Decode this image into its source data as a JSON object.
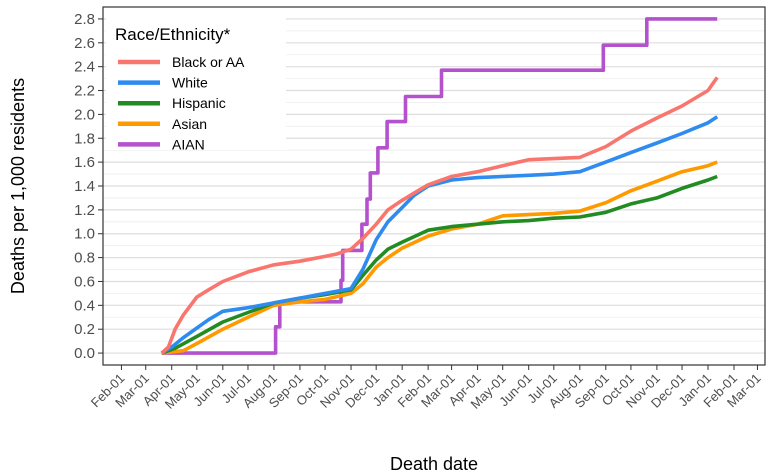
{
  "chart_data": {
    "type": "line",
    "xlabel": "Death date",
    "ylabel": "Deaths per 1,000 residents",
    "ylim": [
      -0.1,
      2.9
    ],
    "y_ticks": [
      0.0,
      0.2,
      0.4,
      0.6,
      0.8,
      1.0,
      1.2,
      1.4,
      1.6,
      1.8,
      2.0,
      2.2,
      2.4,
      2.6,
      2.8
    ],
    "y_tick_labels": [
      "0.0",
      "0.2",
      "0.4",
      "0.6",
      "0.8",
      "1.0",
      "1.2",
      "1.4",
      "1.6",
      "1.8",
      "2.0",
      "2.2",
      "2.4",
      "2.6",
      "2.8"
    ],
    "xlim": [
      "2020-01-10",
      "2022-03-10"
    ],
    "x_ticks": [
      "2020-02-01",
      "2020-03-01",
      "2020-04-01",
      "2020-05-01",
      "2020-06-01",
      "2020-07-01",
      "2020-08-01",
      "2020-09-01",
      "2020-10-01",
      "2020-11-01",
      "2020-12-01",
      "2021-01-01",
      "2021-02-01",
      "2021-03-01",
      "2021-04-01",
      "2021-05-01",
      "2021-06-01",
      "2021-07-01",
      "2021-08-01",
      "2021-09-01",
      "2021-10-01",
      "2021-11-01",
      "2021-12-01",
      "2022-01-01",
      "2022-02-01",
      "2022-03-01"
    ],
    "x_tick_labels": [
      "Feb-01",
      "Mar-01",
      "Apr-01",
      "May-01",
      "Jun-01",
      "Jul-01",
      "Aug-01",
      "Sep-01",
      "Oct-01",
      "Nov-01",
      "Dec-01",
      "Jan-01",
      "Feb-01",
      "Mar-01",
      "Apr-01",
      "May-01",
      "Jun-01",
      "Jul-01",
      "Aug-01",
      "Sep-01",
      "Oct-01",
      "Nov-01",
      "Dec-01",
      "Jan-01",
      "Feb-01",
      "Mar-01"
    ],
    "grid": true,
    "legend": {
      "title": "Race/Ethnicity*",
      "position": "top-left"
    },
    "series": [
      {
        "name": "Black or AA",
        "color": "#F8766D",
        "step": false,
        "points": [
          [
            "2020-03-20",
            0.0
          ],
          [
            "2020-03-28",
            0.05
          ],
          [
            "2020-04-05",
            0.2
          ],
          [
            "2020-04-15",
            0.32
          ],
          [
            "2020-05-01",
            0.47
          ],
          [
            "2020-05-15",
            0.53
          ],
          [
            "2020-06-01",
            0.6
          ],
          [
            "2020-07-01",
            0.68
          ],
          [
            "2020-08-01",
            0.74
          ],
          [
            "2020-09-01",
            0.77
          ],
          [
            "2020-10-01",
            0.81
          ],
          [
            "2020-10-15",
            0.83
          ],
          [
            "2020-11-01",
            0.87
          ],
          [
            "2020-11-15",
            0.96
          ],
          [
            "2020-12-01",
            1.08
          ],
          [
            "2020-12-15",
            1.2
          ],
          [
            "2021-01-01",
            1.28
          ],
          [
            "2021-01-15",
            1.34
          ],
          [
            "2021-02-01",
            1.41
          ],
          [
            "2021-03-01",
            1.48
          ],
          [
            "2021-04-01",
            1.52
          ],
          [
            "2021-05-01",
            1.57
          ],
          [
            "2021-06-01",
            1.62
          ],
          [
            "2021-07-01",
            1.63
          ],
          [
            "2021-08-01",
            1.64
          ],
          [
            "2021-09-01",
            1.73
          ],
          [
            "2021-10-01",
            1.86
          ],
          [
            "2021-11-01",
            1.97
          ],
          [
            "2021-12-01",
            2.07
          ],
          [
            "2022-01-01",
            2.2
          ],
          [
            "2022-01-12",
            2.31
          ]
        ]
      },
      {
        "name": "White",
        "color": "#2E8BEF",
        "step": false,
        "points": [
          [
            "2020-03-20",
            0.0
          ],
          [
            "2020-04-01",
            0.05
          ],
          [
            "2020-04-15",
            0.13
          ],
          [
            "2020-05-01",
            0.21
          ],
          [
            "2020-05-15",
            0.28
          ],
          [
            "2020-06-01",
            0.35
          ],
          [
            "2020-07-01",
            0.38
          ],
          [
            "2020-08-01",
            0.42
          ],
          [
            "2020-09-01",
            0.46
          ],
          [
            "2020-10-01",
            0.5
          ],
          [
            "2020-11-01",
            0.54
          ],
          [
            "2020-11-15",
            0.7
          ],
          [
            "2020-12-01",
            0.95
          ],
          [
            "2020-12-15",
            1.1
          ],
          [
            "2021-01-01",
            1.22
          ],
          [
            "2021-01-15",
            1.32
          ],
          [
            "2021-02-01",
            1.4
          ],
          [
            "2021-03-01",
            1.45
          ],
          [
            "2021-04-01",
            1.47
          ],
          [
            "2021-05-01",
            1.48
          ],
          [
            "2021-06-01",
            1.49
          ],
          [
            "2021-07-01",
            1.5
          ],
          [
            "2021-08-01",
            1.52
          ],
          [
            "2021-09-01",
            1.6
          ],
          [
            "2021-10-01",
            1.68
          ],
          [
            "2021-11-01",
            1.76
          ],
          [
            "2021-12-01",
            1.84
          ],
          [
            "2022-01-01",
            1.93
          ],
          [
            "2022-01-12",
            1.98
          ]
        ]
      },
      {
        "name": "Hispanic",
        "color": "#228B22",
        "step": false,
        "points": [
          [
            "2020-03-20",
            0.0
          ],
          [
            "2020-04-05",
            0.04
          ],
          [
            "2020-05-01",
            0.14
          ],
          [
            "2020-06-01",
            0.26
          ],
          [
            "2020-07-01",
            0.34
          ],
          [
            "2020-08-01",
            0.42
          ],
          [
            "2020-09-01",
            0.46
          ],
          [
            "2020-10-01",
            0.49
          ],
          [
            "2020-11-01",
            0.53
          ],
          [
            "2020-11-15",
            0.65
          ],
          [
            "2020-12-01",
            0.78
          ],
          [
            "2020-12-15",
            0.87
          ],
          [
            "2021-01-01",
            0.93
          ],
          [
            "2021-02-01",
            1.03
          ],
          [
            "2021-03-01",
            1.06
          ],
          [
            "2021-04-01",
            1.08
          ],
          [
            "2021-05-01",
            1.1
          ],
          [
            "2021-06-01",
            1.11
          ],
          [
            "2021-07-01",
            1.13
          ],
          [
            "2021-08-01",
            1.14
          ],
          [
            "2021-09-01",
            1.18
          ],
          [
            "2021-10-01",
            1.25
          ],
          [
            "2021-11-01",
            1.3
          ],
          [
            "2021-12-01",
            1.38
          ],
          [
            "2022-01-01",
            1.45
          ],
          [
            "2022-01-12",
            1.48
          ]
        ]
      },
      {
        "name": "Asian",
        "color": "#FF9900",
        "step": false,
        "points": [
          [
            "2020-03-20",
            0.0
          ],
          [
            "2020-04-15",
            0.02
          ],
          [
            "2020-05-01",
            0.08
          ],
          [
            "2020-06-01",
            0.2
          ],
          [
            "2020-07-01",
            0.3
          ],
          [
            "2020-08-01",
            0.4
          ],
          [
            "2020-09-01",
            0.43
          ],
          [
            "2020-10-01",
            0.45
          ],
          [
            "2020-11-01",
            0.5
          ],
          [
            "2020-11-15",
            0.58
          ],
          [
            "2020-12-01",
            0.72
          ],
          [
            "2020-12-15",
            0.8
          ],
          [
            "2021-01-01",
            0.88
          ],
          [
            "2021-02-01",
            0.98
          ],
          [
            "2021-03-01",
            1.04
          ],
          [
            "2021-04-01",
            1.08
          ],
          [
            "2021-05-01",
            1.15
          ],
          [
            "2021-06-01",
            1.16
          ],
          [
            "2021-07-01",
            1.17
          ],
          [
            "2021-08-01",
            1.19
          ],
          [
            "2021-09-01",
            1.26
          ],
          [
            "2021-10-01",
            1.36
          ],
          [
            "2021-11-01",
            1.44
          ],
          [
            "2021-12-01",
            1.52
          ],
          [
            "2022-01-01",
            1.57
          ],
          [
            "2022-01-12",
            1.6
          ]
        ]
      },
      {
        "name": "AIAN",
        "color": "#B452CD",
        "step": true,
        "points": [
          [
            "2020-03-20",
            0.0
          ],
          [
            "2020-08-03",
            0.22
          ],
          [
            "2020-08-08",
            0.43
          ],
          [
            "2020-10-20",
            0.61
          ],
          [
            "2020-10-22",
            0.86
          ],
          [
            "2020-11-14",
            1.08
          ],
          [
            "2020-11-20",
            1.29
          ],
          [
            "2020-11-24",
            1.51
          ],
          [
            "2020-12-03",
            1.72
          ],
          [
            "2020-12-14",
            1.94
          ],
          [
            "2021-01-05",
            2.15
          ],
          [
            "2021-02-17",
            2.37
          ],
          [
            "2021-08-29",
            2.58
          ],
          [
            "2021-10-20",
            2.8
          ],
          [
            "2022-01-12",
            2.8
          ]
        ]
      }
    ]
  }
}
